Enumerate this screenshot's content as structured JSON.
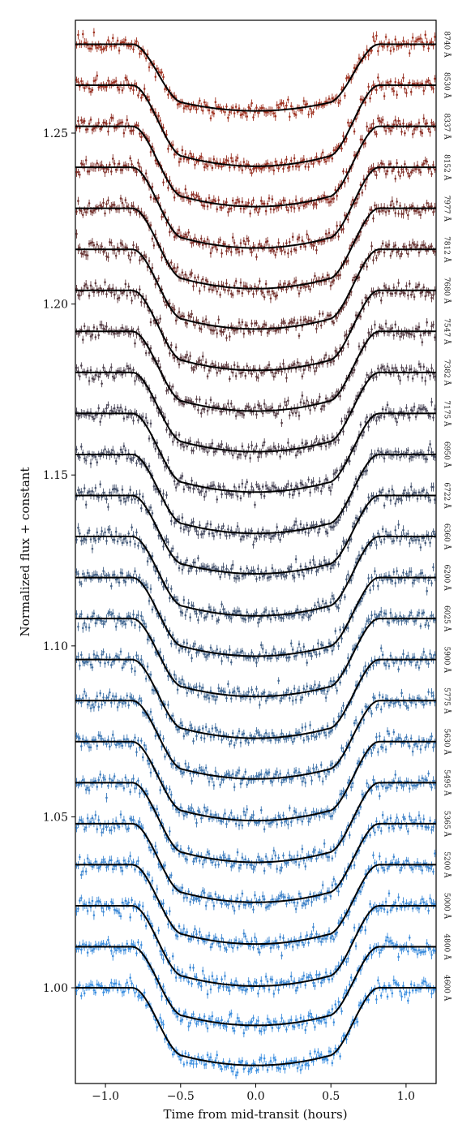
{
  "chart_data": {
    "type": "scatter",
    "title": "",
    "xlabel": "Time from mid-transit (hours)",
    "ylabel": "Normalized flux + constant",
    "xlim": [
      -1.2,
      1.2
    ],
    "ylim": [
      0.972,
      1.283
    ],
    "x_ticks": [
      -1.0,
      -0.5,
      0.0,
      0.5,
      1.0
    ],
    "x_tick_labels": [
      "−1.0",
      "−0.5",
      "0.0",
      "0.5",
      "1.0"
    ],
    "y_ticks": [
      1.0,
      1.05,
      1.1,
      1.15,
      1.2,
      1.25
    ],
    "y_tick_labels": [
      "1.00",
      "1.05",
      "1.10",
      "1.15",
      "1.20",
      "1.25"
    ],
    "grid": false,
    "legend": "none",
    "series_offset": 0.012,
    "model": {
      "t1": -0.82,
      "t2": -0.48,
      "t3": 0.48,
      "t4": 0.82,
      "x_step": 0.02,
      "color": "#000000"
    },
    "series": [
      {
        "label": "4600 Å",
        "baseline": 1.0,
        "depth": 0.0227,
        "color": "#3a8ee0",
        "x": [
          -1.2,
          -1.1,
          -1.0,
          -0.9,
          -0.8,
          -0.7,
          -0.6,
          -0.5,
          -0.4,
          -0.3,
          -0.2,
          -0.1,
          0.0,
          0.1,
          0.2,
          0.3,
          0.4,
          0.5,
          0.6,
          0.7,
          0.8,
          0.9,
          1.0,
          1.1,
          1.2
        ],
        "y": [
          1.0,
          1.0,
          1.0,
          1.0,
          0.9995,
          0.9905,
          0.9818,
          0.9781,
          0.9774,
          0.977,
          0.9775,
          0.9773,
          0.9773,
          0.9775,
          0.9774,
          0.9772,
          0.977,
          0.9785,
          0.983,
          0.992,
          0.9995,
          1.0,
          1.0,
          1.0,
          1.0
        ]
      },
      {
        "label": "4800 Å",
        "baseline": 1.012,
        "depth": 0.023,
        "color": "#3b8cdc"
      },
      {
        "label": "5000 Å",
        "baseline": 1.024,
        "depth": 0.0235,
        "color": "#3c89d6"
      },
      {
        "label": "5200 Å",
        "baseline": 1.036,
        "depth": 0.0232,
        "color": "#3d86d0"
      },
      {
        "label": "5365 Å",
        "baseline": 1.048,
        "depth": 0.023,
        "color": "#3e82c8"
      },
      {
        "label": "5495 Å",
        "baseline": 1.06,
        "depth": 0.0233,
        "color": "#3f7ebf"
      },
      {
        "label": "5630 Å",
        "baseline": 1.072,
        "depth": 0.0231,
        "color": "#3f79b5"
      },
      {
        "label": "5775 Å",
        "baseline": 1.084,
        "depth": 0.0229,
        "color": "#4074aa"
      },
      {
        "label": "5900 Å",
        "baseline": 1.096,
        "depth": 0.023,
        "color": "#416e9e"
      },
      {
        "label": "6025 Å",
        "baseline": 1.108,
        "depth": 0.0228,
        "color": "#426892"
      },
      {
        "label": "6200 Å",
        "baseline": 1.12,
        "depth": 0.023,
        "color": "#436186"
      },
      {
        "label": "6360 Å",
        "baseline": 1.132,
        "depth": 0.0232,
        "color": "#445a79"
      },
      {
        "label": "6722 Å",
        "baseline": 1.144,
        "depth": 0.0229,
        "color": "#46536d"
      },
      {
        "label": "6950 Å",
        "baseline": 1.156,
        "depth": 0.0231,
        "color": "#474c62"
      },
      {
        "label": "7175 Å",
        "baseline": 1.168,
        "depth": 0.023,
        "color": "#4a4657"
      },
      {
        "label": "7382 Å",
        "baseline": 1.18,
        "depth": 0.0232,
        "color": "#4e414d"
      },
      {
        "label": "7547 Å",
        "baseline": 1.192,
        "depth": 0.0233,
        "color": "#553c44"
      },
      {
        "label": "7680 Å",
        "baseline": 1.204,
        "depth": 0.0234,
        "color": "#5d383c"
      },
      {
        "label": "7812 Å",
        "baseline": 1.216,
        "depth": 0.0233,
        "color": "#683534"
      },
      {
        "label": "7977 Å",
        "baseline": 1.228,
        "depth": 0.0235,
        "color": "#74322e"
      },
      {
        "label": "8152 Å",
        "baseline": 1.24,
        "depth": 0.0236,
        "color": "#812f29"
      },
      {
        "label": "8337 Å",
        "baseline": 1.252,
        "depth": 0.0235,
        "color": "#8d2e25"
      },
      {
        "label": "8530 Å",
        "baseline": 1.264,
        "depth": 0.0237,
        "color": "#972f22"
      },
      {
        "label": "8740 Å",
        "baseline": 1.276,
        "depth": 0.0195,
        "color": "#a03322"
      }
    ]
  }
}
